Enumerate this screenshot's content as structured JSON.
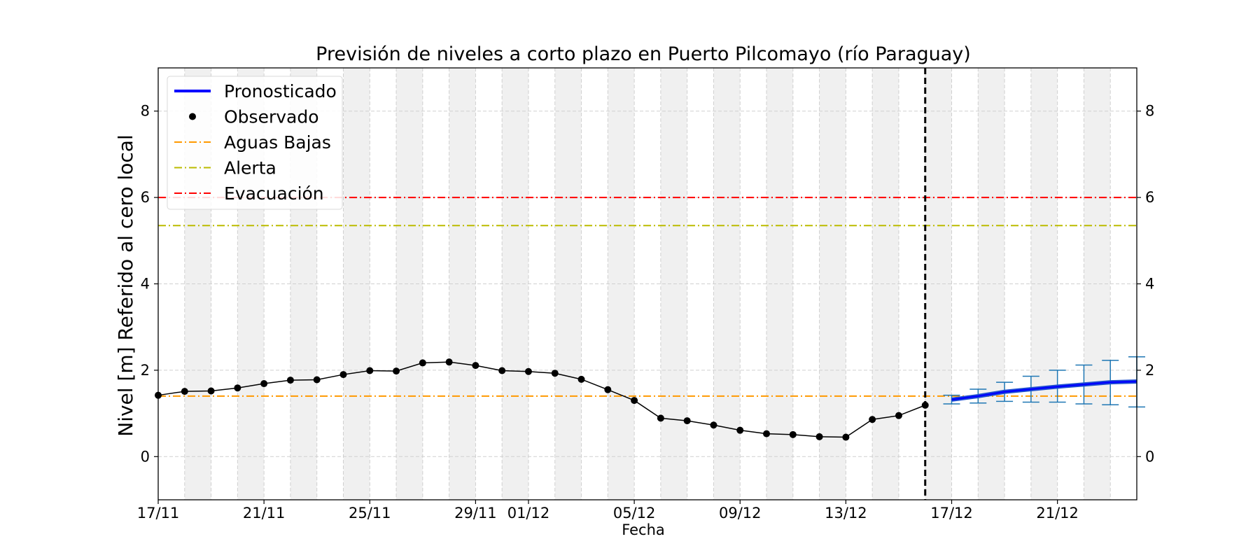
{
  "chart_data": {
    "type": "line",
    "title": "Previsión de niveles a corto plazo en Puerto Pilcomayo (río Paraguay)",
    "xlabel": "Fecha",
    "ylabel": "Nivel [m] Referido al cero local",
    "xlim": [
      "2023-11-17",
      "2023-12-24"
    ],
    "ylim": [
      -1,
      9
    ],
    "yticks": [
      0,
      2,
      4,
      6,
      8
    ],
    "xticks": [
      {
        "date": "2023-11-17",
        "label": "17/11"
      },
      {
        "date": "2023-11-21",
        "label": "21/11"
      },
      {
        "date": "2023-11-25",
        "label": "25/11"
      },
      {
        "date": "2023-11-29",
        "label": "29/11"
      },
      {
        "date": "2023-12-01",
        "label": "01/12"
      },
      {
        "date": "2023-12-05",
        "label": "05/12"
      },
      {
        "date": "2023-12-09",
        "label": "09/12"
      },
      {
        "date": "2023-12-13",
        "label": "13/12"
      },
      {
        "date": "2023-12-17",
        "label": "17/12"
      },
      {
        "date": "2023-12-21",
        "label": "21/12"
      }
    ],
    "grid": true,
    "legend_position": "top-left",
    "forecast_start": "2023-12-16",
    "observed": {
      "name": "Observado",
      "color": "#000000",
      "x": [
        "2023-11-17",
        "2023-11-18",
        "2023-11-19",
        "2023-11-20",
        "2023-11-21",
        "2023-11-22",
        "2023-11-23",
        "2023-11-24",
        "2023-11-25",
        "2023-11-26",
        "2023-11-27",
        "2023-11-28",
        "2023-11-29",
        "2023-11-30",
        "2023-12-01",
        "2023-12-02",
        "2023-12-03",
        "2023-12-04",
        "2023-12-05",
        "2023-12-06",
        "2023-12-07",
        "2023-12-08",
        "2023-12-09",
        "2023-12-10",
        "2023-12-11",
        "2023-12-12",
        "2023-12-13",
        "2023-12-14",
        "2023-12-15",
        "2023-12-16"
      ],
      "y": [
        1.42,
        1.51,
        1.52,
        1.59,
        1.69,
        1.77,
        1.78,
        1.9,
        1.99,
        1.98,
        2.17,
        2.19,
        2.11,
        1.99,
        1.97,
        1.93,
        1.79,
        1.55,
        1.3,
        0.89,
        0.83,
        0.73,
        0.61,
        0.53,
        0.51,
        0.46,
        0.45,
        0.86,
        0.95,
        1.19
      ]
    },
    "forecast": {
      "name": "Pronosticado",
      "color": "#0000ff",
      "x": [
        "2023-12-17",
        "2023-12-18",
        "2023-12-19",
        "2023-12-20",
        "2023-12-21",
        "2023-12-22",
        "2023-12-23",
        "2023-12-24"
      ],
      "y": [
        1.32,
        1.4,
        1.5,
        1.56,
        1.62,
        1.67,
        1.72,
        1.74
      ],
      "lower": [
        1.22,
        1.24,
        1.28,
        1.26,
        1.26,
        1.22,
        1.2,
        1.15
      ],
      "upper": [
        1.42,
        1.56,
        1.72,
        1.86,
        2.0,
        2.12,
        2.23,
        2.31
      ]
    },
    "thresholds": [
      {
        "name": "Aguas Bajas",
        "value": 1.4,
        "color": "#ff9900"
      },
      {
        "name": "Alerta",
        "value": 5.35,
        "color": "#bbbb00"
      },
      {
        "name": "Evacuación",
        "value": 6.0,
        "color": "#ff0000"
      }
    ],
    "colors": {
      "error_bar": "#1f77b4",
      "band": "#f0f0f0",
      "grid": "#d0d0d0"
    }
  }
}
